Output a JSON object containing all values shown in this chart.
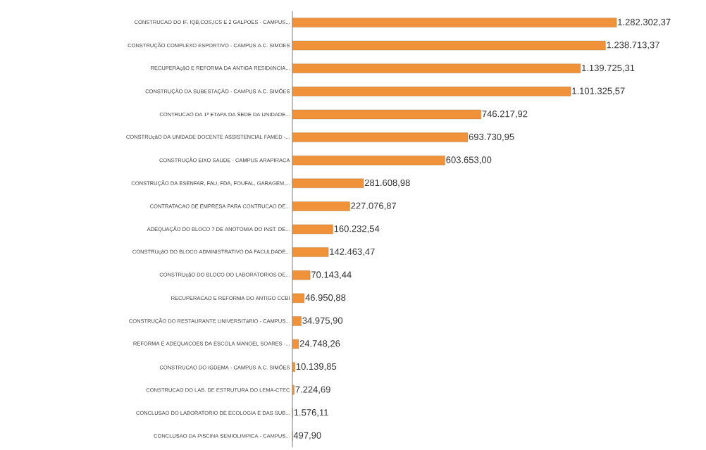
{
  "chart_data": {
    "type": "bar",
    "orientation": "horizontal",
    "color": "#f0923a",
    "data_labels": true,
    "categories": [
      "CONSTRUCAO DO IF, IQB,COS,ICS E 2 GALPOES - CAMPUS...",
      "CONSTRUÇÃO COMPLEXO ESPORTIVO - CAMPUS A.C. SIMOES",
      "RECUPERAçãO E REFORMA DA ANTIGA RESIDêNCIA...",
      "CONSTRUÇÃO DA SUBESTAÇÃO - CAMPUS A.C. SIMÕES",
      "CONTRUCAO DA 1ª ETAPA DA SEDE DA UNIDADE...",
      "CONSTRUçãO DA UNIDADE DOCENTE ASSISTENCIAL FAMED -...",
      "CONSTRUÇÃO EIXO SAUDE - CAMPUS ARAPIRACA",
      "CONSTRUÇÃO DA ESENFAR, FAU, FDA, FOUFAL, GARAGEM,...",
      "CONTRATACAO DE EMPRESA PARA CONTRUCAO DE...",
      "ADEQUAÇÃO DO BLOCO 7 DE ANOTOMIA DO INST. DE...",
      "CONSTRUçãO DO BLOCO ADMINISTRATIVO DA FACULDADE...",
      "CONSTRUçãO DO BLOCO DO LABORATORIOS DE...",
      "RECUPERACAO E REFORMA DO ANTIGO CCBI",
      "CONSTRUÇÃO DO RESTAURANTE UNIVERSITáRIO - CAMPUS...",
      "REFORMA E ADEQUACOES DA ESCOLA MANOEL SOARES -...",
      "CONSTRUCAO DO IGDEMA - CAMPUS A.C. SIMÕES",
      "CONSTRUCAO DO LAB. DE ESTRUTURA DO LEMA-CTEC",
      "CONCLUSAO DO LABORATORIO DE ECOLOGIA E DAS SUB...",
      "CONCLUSAO DA PISCINA SEMIOLIMPICA - CAMPUS..."
    ],
    "values": [
      1282302.37,
      1238713.37,
      1139725.31,
      1101325.57,
      746217.92,
      693730.95,
      603653.0,
      281608.98,
      227076.87,
      160232.54,
      142463.47,
      70143.44,
      46950.88,
      34975.9,
      24748.26,
      10139.85,
      7224.69,
      1576.11,
      497.9
    ],
    "value_labels": [
      "1.282.302,37",
      "1.238.713,37",
      "1.139.725,31",
      "1.101.325,57",
      "746.217,92",
      "693.730,95",
      "603.653,00",
      "281.608,98",
      "227.076,87",
      "160.232,54",
      "142.463,47",
      "70.143,44",
      "46.950,88",
      "34.975,90",
      "24.748,26",
      "10.139,85",
      "7.224,69",
      "1.576,11",
      "497,90"
    ]
  }
}
